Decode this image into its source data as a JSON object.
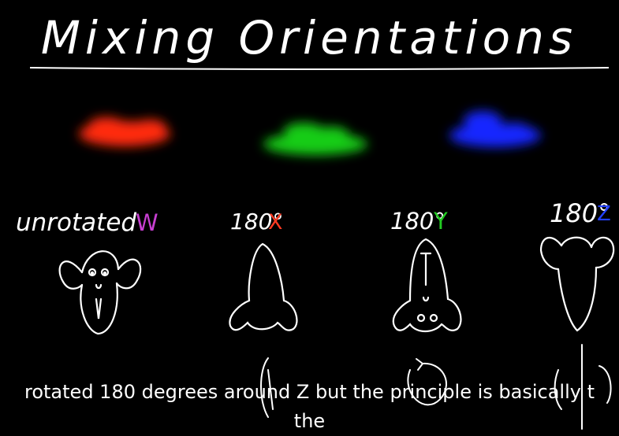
{
  "title": "Mixing Orientations",
  "colors": {
    "red": "#ff2a10",
    "green": "#12cc12",
    "blue": "#1326ff",
    "w_label": "#c63fd0",
    "x_label": "#ff3a22",
    "y_label": "#22cc22",
    "z_label": "#2240ff",
    "chalk": "#ffffff",
    "background": "#000000"
  },
  "labels": {
    "unrotated_text": "unrotated",
    "unrotated_axis": "W",
    "x_text": "180°",
    "x_axis": "X",
    "y_text": "180°",
    "y_axis": "Y",
    "z_text": "180°",
    "z_axis": "Z"
  },
  "subtitle": {
    "line1": "rotated 180 degrees around Z but the principle is basically t",
    "line2": "the"
  }
}
